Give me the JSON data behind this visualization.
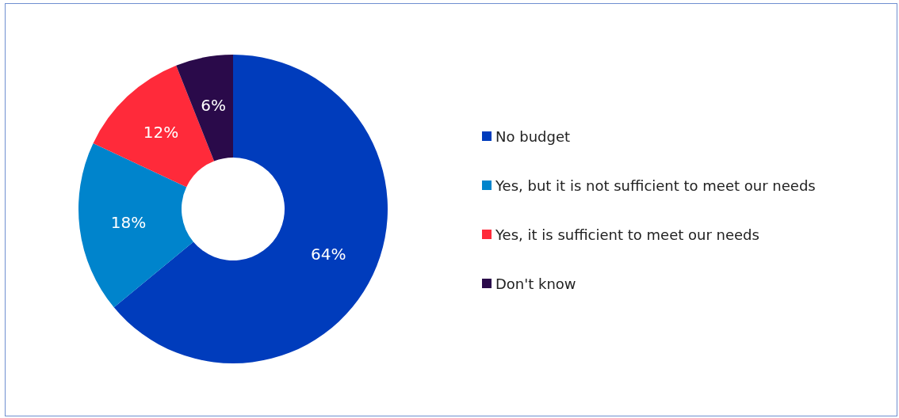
{
  "chart_data": {
    "type": "donut",
    "categories": [
      "No budget",
      "Yes, but it is not sufficient to meet our needs",
      "Yes, it is sufficient to meet our needs",
      "Don't know"
    ],
    "values": [
      64,
      18,
      12,
      6
    ],
    "colors": [
      "#003cbc",
      "#0084cc",
      "#ff2a3a",
      "#2a0a4a"
    ],
    "value_labels": [
      "64%",
      "18%",
      "12%",
      "6%"
    ],
    "legend": "right"
  }
}
